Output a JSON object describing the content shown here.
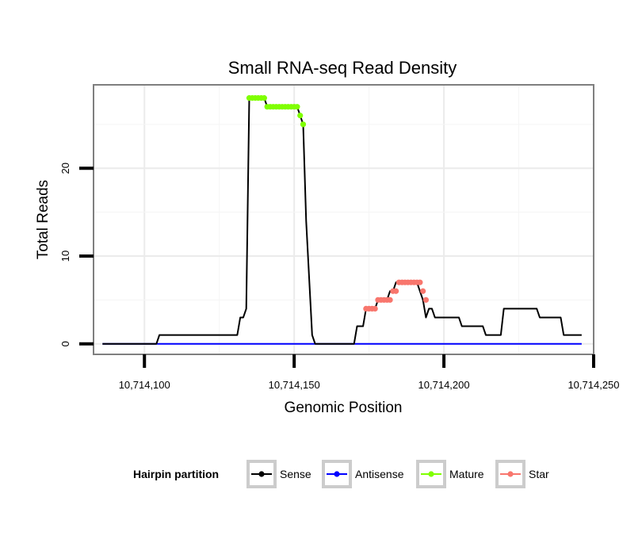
{
  "chart_data": {
    "type": "line",
    "title": "Small RNA-seq Read Density",
    "xlabel": "Genomic Position",
    "ylabel": "Total Reads",
    "xlim": [
      10714083,
      10714250
    ],
    "ylim": [
      -1.2,
      29.5
    ],
    "x_ticks": [
      10714100,
      10714150,
      10714200,
      10714250
    ],
    "x_tick_labels": [
      "10,714,100",
      "10,714,150",
      "10,714,200",
      "10,714,250"
    ],
    "y_ticks": [
      0,
      10,
      20
    ],
    "y_tick_labels": [
      "0",
      "10",
      "20"
    ],
    "grid": true,
    "legend_placement": "bottom",
    "legend_title": "Hairpin partition",
    "colors": {
      "Sense": "#000000",
      "Antisense": "#0000ff",
      "Mature": "#7fff00",
      "Star": "#f8766d",
      "panel_border": "#7f7f7f",
      "grid": "#ebebeb"
    },
    "series": [
      {
        "name": "Sense",
        "x": [
          10714086,
          10714104,
          10714105,
          10714131,
          10714132,
          10714133,
          10714134,
          10714135,
          10714140,
          10714141,
          10714151,
          10714152,
          10714153,
          10714154,
          10714156,
          10714157,
          10714158,
          10714163,
          10714170,
          10714171,
          10714173,
          10714174,
          10714177,
          10714178,
          10714180,
          10714181,
          10714182,
          10714183,
          10714184,
          10714185,
          10714190,
          10714191,
          10714192,
          10714193,
          10714194,
          10714195,
          10714196,
          10714197,
          10714198,
          10714199,
          10714200,
          10714205,
          10714206,
          10714213,
          10714214,
          10714218,
          10714219,
          10714220,
          10714231,
          10714232,
          10714239,
          10714240,
          10714246
        ],
        "y": [
          0,
          0,
          1,
          1,
          3,
          3,
          4,
          28,
          28,
          27,
          27,
          26,
          25,
          14,
          1,
          0,
          0,
          0,
          0,
          2,
          2,
          4,
          4,
          5,
          5,
          5,
          6,
          6,
          7,
          7,
          7,
          7,
          6,
          5,
          3,
          4,
          4,
          3,
          3,
          3,
          3,
          3,
          2,
          2,
          1,
          1,
          1,
          4,
          4,
          3,
          3,
          1,
          1
        ]
      },
      {
        "name": "Antisense",
        "x": [
          10714086,
          10714246
        ],
        "y": [
          0,
          0
        ]
      },
      {
        "name": "Mature",
        "points": [
          [
            10714135,
            28
          ],
          [
            10714136,
            28
          ],
          [
            10714137,
            28
          ],
          [
            10714138,
            28
          ],
          [
            10714139,
            28
          ],
          [
            10714140,
            28
          ],
          [
            10714141,
            27
          ],
          [
            10714142,
            27
          ],
          [
            10714143,
            27
          ],
          [
            10714144,
            27
          ],
          [
            10714145,
            27
          ],
          [
            10714146,
            27
          ],
          [
            10714147,
            27
          ],
          [
            10714148,
            27
          ],
          [
            10714149,
            27
          ],
          [
            10714150,
            27
          ],
          [
            10714151,
            27
          ],
          [
            10714152,
            26
          ],
          [
            10714153,
            25
          ]
        ]
      },
      {
        "name": "Star",
        "points": [
          [
            10714174,
            4
          ],
          [
            10714175,
            4
          ],
          [
            10714176,
            4
          ],
          [
            10714177,
            4
          ],
          [
            10714178,
            5
          ],
          [
            10714179,
            5
          ],
          [
            10714180,
            5
          ],
          [
            10714181,
            5
          ],
          [
            10714182,
            5
          ],
          [
            10714183,
            6
          ],
          [
            10714184,
            6
          ],
          [
            10714185,
            7
          ],
          [
            10714186,
            7
          ],
          [
            10714187,
            7
          ],
          [
            10714188,
            7
          ],
          [
            10714189,
            7
          ],
          [
            10714190,
            7
          ],
          [
            10714191,
            7
          ],
          [
            10714192,
            7
          ],
          [
            10714193,
            6
          ],
          [
            10714194,
            5
          ]
        ]
      }
    ]
  }
}
